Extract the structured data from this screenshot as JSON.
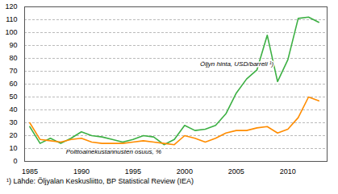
{
  "chart_data": {
    "type": "line",
    "x": [
      1985,
      1986,
      1987,
      1988,
      1989,
      1990,
      1991,
      1992,
      1993,
      1994,
      1995,
      1996,
      1997,
      1998,
      1999,
      2000,
      2001,
      2002,
      2003,
      2004,
      2005,
      2006,
      2007,
      2008,
      2009,
      2010,
      2011,
      2012,
      2013
    ],
    "series": [
      {
        "color": "#3cb043",
        "values": [
          27,
          14,
          18,
          14,
          18,
          23,
          20,
          19,
          17,
          15,
          17,
          20,
          19,
          13,
          17,
          28,
          24,
          25,
          28,
          37,
          53,
          64,
          71,
          98,
          62,
          79,
          111,
          112,
          108
        ]
      },
      {
        "color": "#ff8c00",
        "values": [
          30,
          17,
          16,
          15,
          17,
          18,
          15,
          14,
          14,
          14,
          15,
          16,
          15,
          14,
          13,
          20,
          18,
          15,
          18,
          22,
          24,
          24,
          26,
          27,
          22,
          25,
          34,
          50,
          47
        ]
      }
    ],
    "xlim": [
      1984.5,
      2013.8
    ],
    "xticks": [
      1985,
      1990,
      1995,
      2000,
      2005,
      2010
    ],
    "ylim": [
      0,
      120
    ],
    "yticks": [
      0,
      10,
      20,
      30,
      40,
      50,
      60,
      70,
      80,
      90,
      100,
      110,
      120
    ],
    "grid": true,
    "annotations": [
      {
        "text": "Öljyn hinta, USD/barreli ¹)",
        "x": 2001.5,
        "y": 74
      },
      {
        "text": "Polttoainekustannusten osuus, %",
        "x": 1988.5,
        "y": 6
      }
    ],
    "caption": "¹)  Lähde: Öljyalan Keskusliitto, BP Statistical Review (IEA)"
  }
}
